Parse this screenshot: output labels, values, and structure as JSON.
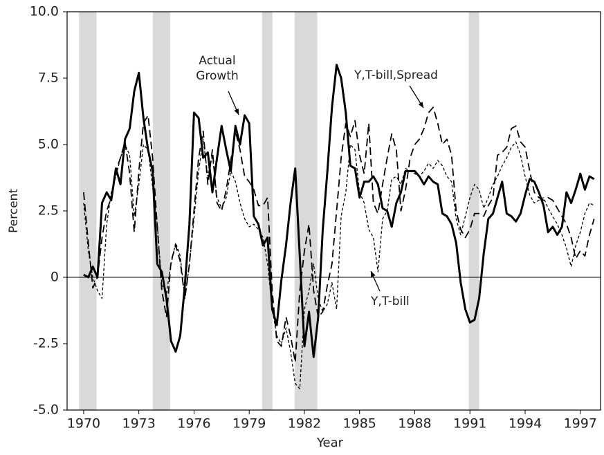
{
  "chart_data": {
    "type": "line",
    "x_label": "Year",
    "y_label": "Percent",
    "xlim": [
      1969.1,
      1998.1
    ],
    "ylim": [
      -5,
      10
    ],
    "xticks": [
      1970,
      1973,
      1976,
      1979,
      1982,
      1985,
      1988,
      1991,
      1994,
      1997
    ],
    "yticks": [
      {
        "value": 10,
        "label": "10.0"
      },
      7.5,
      {
        "value": 5,
        "label": "5.0"
      },
      2.5,
      0,
      -2.5,
      {
        "value": -5,
        "label": "-5.0"
      }
    ],
    "zero_line": true,
    "shaded_regions": [
      [
        1969.75,
        1970.7
      ],
      [
        1973.76,
        1974.7
      ],
      [
        1979.7,
        1980.26
      ],
      [
        1981.47,
        1982.7
      ],
      [
        1990.94,
        1991.5
      ]
    ],
    "shade_color": "#d9d9d9",
    "x": [
      1970,
      1970.25,
      1970.5,
      1970.75,
      1971,
      1971.25,
      1971.5,
      1971.75,
      1972,
      1972.25,
      1972.5,
      1972.75,
      1973,
      1973.25,
      1973.5,
      1973.75,
      1974,
      1974.25,
      1974.5,
      1974.75,
      1975,
      1975.25,
      1975.5,
      1975.75,
      1976,
      1976.25,
      1976.5,
      1976.75,
      1977,
      1977.25,
      1977.5,
      1977.75,
      1978,
      1978.25,
      1978.5,
      1978.75,
      1979,
      1979.25,
      1979.5,
      1979.75,
      1980,
      1980.25,
      1980.5,
      1980.75,
      1981,
      1981.25,
      1981.5,
      1981.75,
      1982,
      1982.25,
      1982.5,
      1982.75,
      1983,
      1983.25,
      1983.5,
      1983.75,
      1984,
      1984.25,
      1984.5,
      1984.75,
      1985,
      1985.25,
      1985.5,
      1985.75,
      1986,
      1986.25,
      1986.5,
      1986.75,
      1987,
      1987.25,
      1987.5,
      1987.75,
      1988,
      1988.25,
      1988.5,
      1988.75,
      1989,
      1989.25,
      1989.5,
      1989.75,
      1990,
      1990.25,
      1990.5,
      1990.75,
      1991,
      1991.25,
      1991.5,
      1991.75,
      1992,
      1992.25,
      1992.5,
      1992.75,
      1993,
      1993.25,
      1993.5,
      1993.75,
      1994,
      1994.25,
      1994.5,
      1994.75,
      1995,
      1995.25,
      1995.5,
      1995.75,
      1996,
      1996.25,
      1996.5,
      1996.75,
      1997,
      1997.25,
      1997.5,
      1997.75
    ],
    "series": [
      {
        "name": "Actual Growth",
        "color": "#000000",
        "dash": "none",
        "width": 3,
        "values": [
          0.1,
          0.0,
          0.4,
          0.0,
          2.8,
          3.2,
          2.9,
          4.1,
          3.5,
          5.2,
          5.6,
          7.0,
          7.7,
          6.0,
          4.8,
          4.0,
          0.5,
          0.2,
          -0.8,
          -2.4,
          -2.8,
          -2.2,
          -0.3,
          2.0,
          6.2,
          6.0,
          4.5,
          4.7,
          3.2,
          4.5,
          5.7,
          4.8,
          4.0,
          5.7,
          5.0,
          6.1,
          5.8,
          2.3,
          2.0,
          1.2,
          1.5,
          -1.2,
          -1.8,
          -0.1,
          1.2,
          2.8,
          4.1,
          0.8,
          -2.6,
          -1.3,
          -3.0,
          -1.5,
          1.8,
          4.0,
          6.4,
          8.0,
          7.5,
          6.2,
          4.2,
          4.1,
          3.0,
          3.6,
          3.6,
          3.8,
          3.5,
          2.6,
          2.5,
          1.9,
          2.8,
          3.2,
          4.0,
          4.0,
          4.0,
          3.8,
          3.5,
          3.8,
          3.6,
          3.5,
          2.4,
          2.3,
          2.0,
          1.3,
          -0.2,
          -1.2,
          -1.7,
          -1.6,
          -0.8,
          0.9,
          2.2,
          2.4,
          3.0,
          3.6,
          2.4,
          2.3,
          2.1,
          2.4,
          3.1,
          3.7,
          3.6,
          3.2,
          2.7,
          1.7,
          1.9,
          1.6,
          1.9,
          3.2,
          2.8,
          3.3,
          3.9,
          3.3,
          3.8,
          3.7
        ]
      },
      {
        "name": "Y,T-bill,Spread",
        "color": "#000000",
        "dash": "11 6",
        "width": 1.8,
        "values": [
          3.2,
          1.3,
          -0.4,
          0.0,
          1.5,
          2.5,
          3.0,
          4.0,
          4.5,
          5.1,
          3.9,
          1.7,
          4.0,
          5.8,
          6.1,
          4.5,
          1.9,
          -0.5,
          -1.5,
          0.6,
          1.2,
          0.6,
          -0.8,
          0.5,
          2.5,
          4.5,
          5.5,
          3.5,
          4.8,
          2.8,
          2.5,
          3.3,
          4.4,
          5.5,
          4.8,
          3.8,
          3.6,
          3.3,
          2.7,
          2.7,
          3.0,
          -0.5,
          -2.4,
          -2.6,
          -1.5,
          -2.2,
          -3.2,
          -0.5,
          1.0,
          2.0,
          -0.5,
          -1.5,
          -1.3,
          -0.3,
          0.5,
          2.5,
          4.5,
          5.8,
          5.3,
          5.9,
          4.6,
          3.9,
          5.8,
          2.8,
          2.4,
          3.5,
          4.5,
          5.4,
          4.8,
          2.5,
          3.3,
          4.5,
          5.0,
          5.2,
          5.6,
          6.2,
          6.4,
          5.8,
          5.0,
          5.2,
          4.6,
          2.5,
          1.8,
          1.5,
          1.8,
          2.4,
          2.4,
          2.3,
          2.7,
          3.0,
          4.6,
          4.7,
          4.9,
          5.6,
          5.7,
          5.1,
          4.9,
          4.0,
          3.2,
          3.0,
          2.9,
          3.0,
          2.9,
          2.6,
          2.3,
          2.0,
          1.5,
          0.7,
          1.0,
          0.8,
          1.6,
          2.2
        ]
      },
      {
        "name": "Y,T-bill",
        "color": "#000000",
        "dash": "4 3",
        "width": 1.3,
        "values": [
          2.8,
          1.0,
          0.0,
          -0.5,
          -0.8,
          2.0,
          3.2,
          3.8,
          4.5,
          5.0,
          4.6,
          2.3,
          3.5,
          5.0,
          4.8,
          3.4,
          2.0,
          -0.3,
          -0.6,
          0.5,
          1.3,
          0.8,
          -0.8,
          0.5,
          2.2,
          4.0,
          5.2,
          3.8,
          4.6,
          3.0,
          2.6,
          3.0,
          4.0,
          3.6,
          2.8,
          2.2,
          1.9,
          2.0,
          1.8,
          1.5,
          0.5,
          -1.2,
          -2.2,
          -2.5,
          -1.9,
          -2.8,
          -4.0,
          -4.2,
          -1.2,
          -0.5,
          0.5,
          -0.8,
          -1.3,
          -1.0,
          -0.2,
          -1.2,
          2.3,
          3.2,
          5.0,
          4.8,
          3.2,
          2.8,
          1.8,
          1.5,
          0.2,
          2.2,
          2.5,
          3.7,
          3.8,
          3.5,
          4.1,
          4.0,
          3.9,
          3.8,
          4.0,
          4.3,
          4.1,
          4.4,
          4.2,
          3.8,
          3.6,
          2.2,
          1.6,
          2.3,
          3.0,
          3.5,
          3.3,
          2.6,
          3.0,
          3.5,
          3.8,
          4.2,
          4.5,
          4.9,
          5.1,
          4.6,
          3.8,
          3.1,
          2.8,
          2.9,
          3.0,
          2.6,
          2.3,
          2.0,
          1.6,
          1.1,
          0.4,
          1.2,
          1.7,
          2.4,
          2.8,
          2.7
        ]
      }
    ]
  }
}
